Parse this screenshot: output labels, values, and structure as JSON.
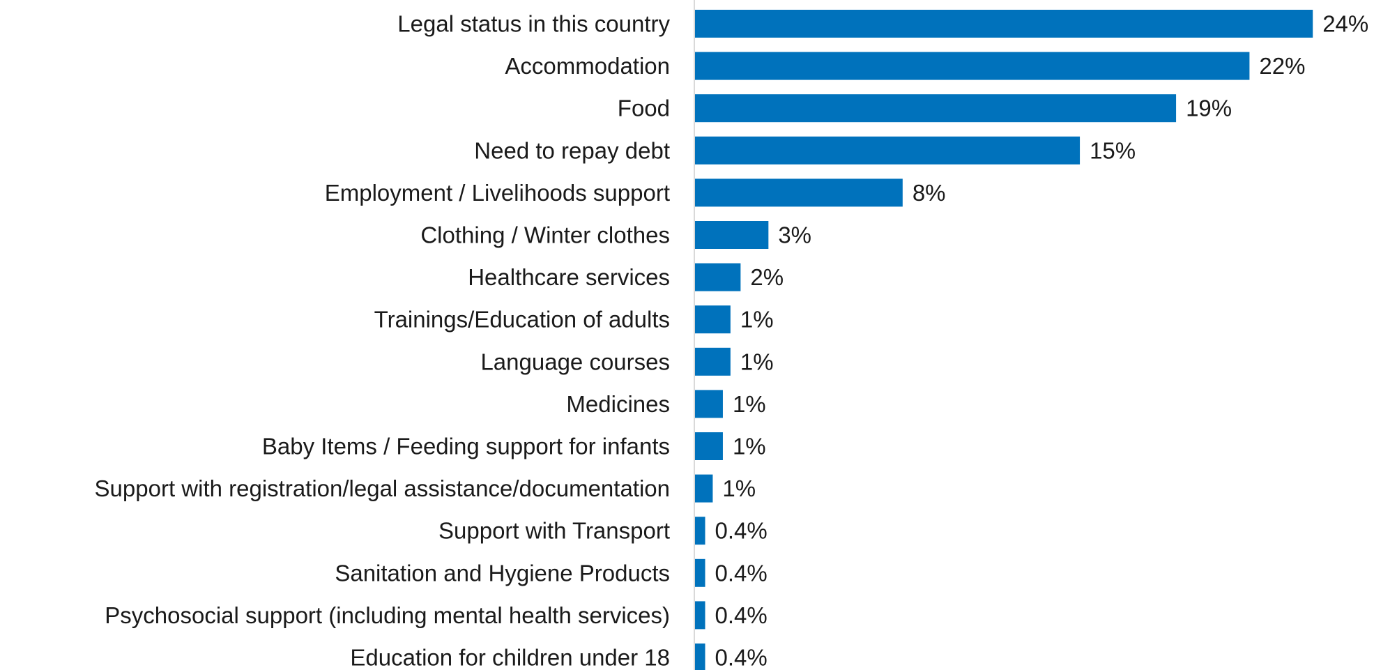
{
  "chart_data": {
    "type": "bar",
    "orientation": "horizontal",
    "categories": [
      "Legal status in this country",
      "Accommodation",
      "Food",
      "Need to repay debt",
      "Employment / Livelihoods support",
      "Clothing / Winter clothes",
      "Healthcare services",
      "Trainings/Education of adults",
      "Language courses",
      "Medicines",
      "Baby Items / Feeding support for infants",
      "Support with registration/legal assistance/documentation",
      "Support with Transport",
      "Sanitation and Hygiene Products",
      "Psychosocial support (including mental health services)",
      "Education for children under 18"
    ],
    "values": [
      24.4,
      21.9,
      19.0,
      15.2,
      8.2,
      2.9,
      1.8,
      1.4,
      1.4,
      1.1,
      1.1,
      0.7,
      0.4,
      0.4,
      0.4,
      0.4
    ],
    "data_labels": [
      "24%",
      "22%",
      "19%",
      "15%",
      "8%",
      "3%",
      "2%",
      "1%",
      "1%",
      "1%",
      "1%",
      "1%",
      "0.4%",
      "0.4%",
      "0.4%",
      "0.4%"
    ],
    "bar_color": "#0072BC",
    "axis_line_color": "#d9d9d9",
    "xlim": [
      0,
      25
    ],
    "grid": false,
    "legend": "none"
  }
}
